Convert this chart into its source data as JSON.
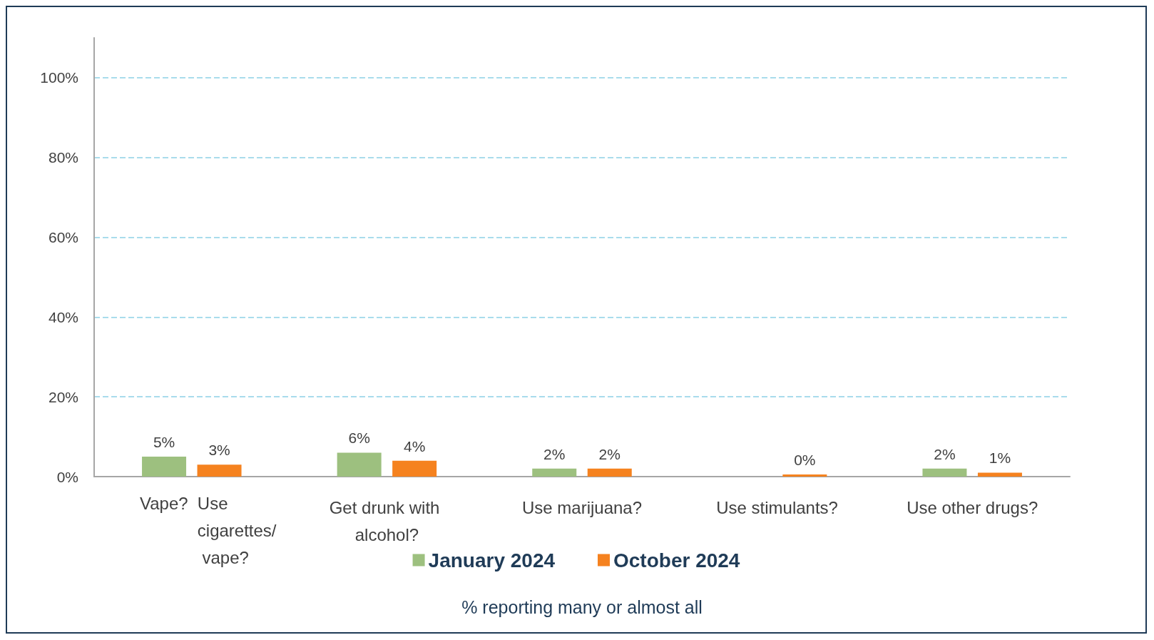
{
  "chart_data": {
    "type": "bar",
    "categories": [
      null,
      "Get drunk with alcohol?",
      "Use marijuana?",
      "Use stimulants?",
      "Use other drugs?"
    ],
    "series": [
      {
        "name": "January 2024",
        "color": "#9dc07f",
        "values": [
          5,
          6,
          2,
          null,
          2
        ],
        "value_labels": [
          "5%",
          "6%",
          "2%",
          null,
          "2%"
        ]
      },
      {
        "name": "October 2024",
        "color": "#f5821f",
        "values": [
          3,
          4,
          2,
          0,
          1
        ],
        "value_labels": [
          "3%",
          "4%",
          "2%",
          "0%",
          "1%"
        ]
      }
    ],
    "xlabel": "% reporting many or almost all",
    "annotations": [
      "Vape?",
      "Use cigarettes/ vape?"
    ],
    "ylim": [
      0,
      110
    ],
    "yticks": [
      {
        "value": 0,
        "label": "0%"
      },
      {
        "value": 20,
        "label": "20%"
      },
      {
        "value": 40,
        "label": "40%"
      },
      {
        "value": 60,
        "label": "60%"
      },
      {
        "value": 80,
        "label": "80%"
      },
      {
        "value": 100,
        "label": "100%"
      }
    ],
    "grid": "y",
    "legend": "bottom"
  }
}
